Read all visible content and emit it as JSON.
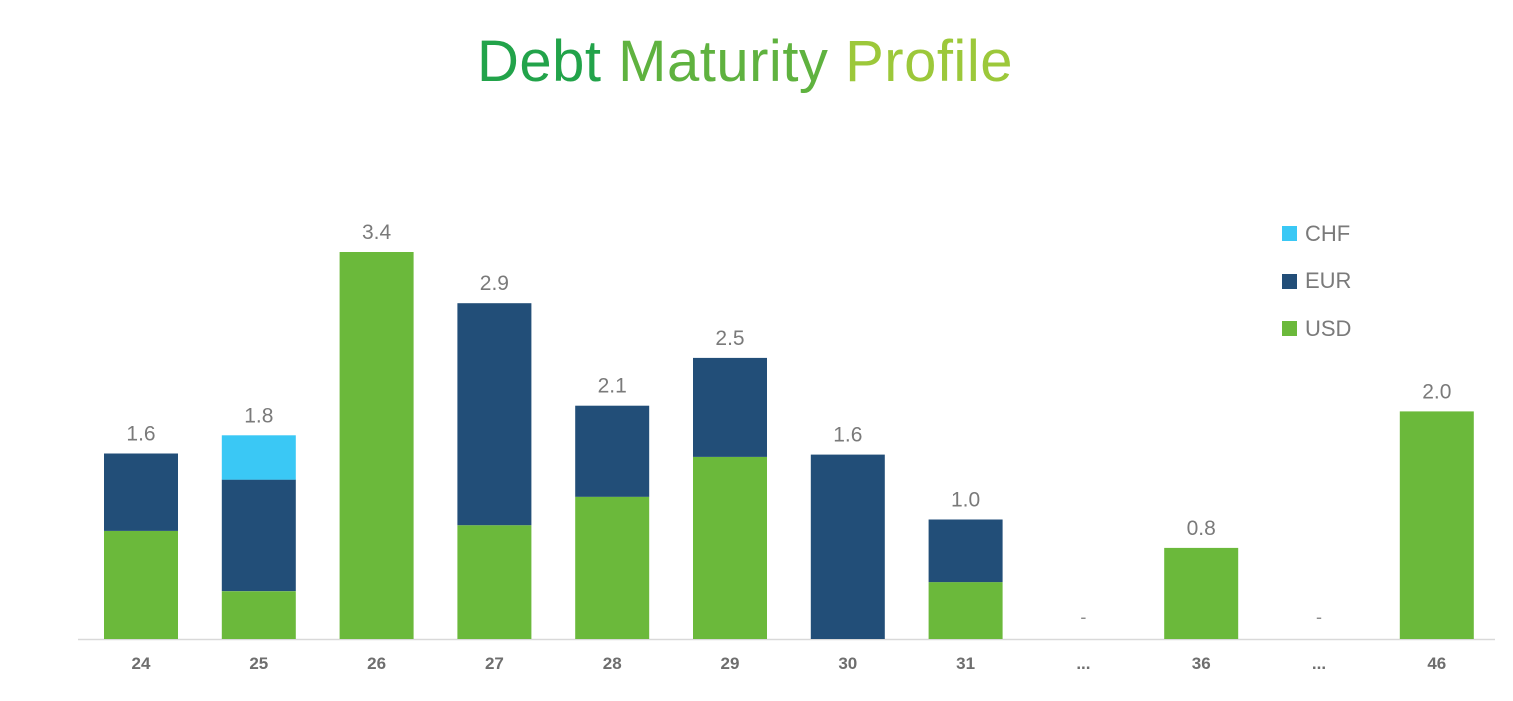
{
  "title": {
    "word1": "Debt",
    "word2": "Maturity",
    "word3": "Profile",
    "colors": [
      "#22a34a",
      "#5fb23f",
      "#9cc83a"
    ]
  },
  "chart_data": {
    "type": "bar",
    "stacked": true,
    "title": "Debt Maturity Profile",
    "categories": [
      "24",
      "25",
      "26",
      "27",
      "28",
      "29",
      "30",
      "31",
      "...",
      "36",
      "...",
      "46"
    ],
    "totals_labels": [
      "1.6",
      "1.8",
      "3.4",
      "2.9",
      "2.1",
      "2.5",
      "1.6",
      "1.0",
      "-",
      "0.8",
      "-",
      "2.0"
    ],
    "series": [
      {
        "name": "USD",
        "color": "#6bb93b",
        "values": [
          0.95,
          0.42,
          3.4,
          1.0,
          1.25,
          1.6,
          0.0,
          0.5,
          0,
          0.8,
          0,
          2.0
        ]
      },
      {
        "name": "EUR",
        "color": "#224e78",
        "values": [
          0.68,
          0.98,
          0.0,
          1.95,
          0.8,
          0.87,
          1.62,
          0.55,
          0,
          0.0,
          0,
          0.0
        ]
      },
      {
        "name": "CHF",
        "color": "#3ac8f5",
        "values": [
          0.0,
          0.39,
          0.0,
          0.0,
          0.0,
          0.0,
          0.0,
          0.0,
          0,
          0.0,
          0,
          0.0
        ]
      }
    ],
    "legend_order": [
      "CHF",
      "EUR",
      "USD"
    ],
    "legend_position": "top-right",
    "ylim": [
      0,
      3.4
    ],
    "grid": false
  }
}
